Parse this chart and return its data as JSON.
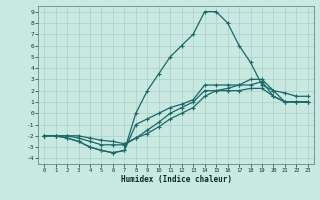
{
  "xlabel": "Humidex (Indice chaleur)",
  "bg_color": "#c8e8e0",
  "grid_color": "#a8d0cc",
  "line_color": "#1a6868",
  "xlim": [
    -0.5,
    23.5
  ],
  "ylim": [
    -4.5,
    9.5
  ],
  "xticks": [
    0,
    1,
    2,
    3,
    4,
    5,
    6,
    7,
    8,
    9,
    10,
    11,
    12,
    13,
    14,
    15,
    16,
    17,
    18,
    19,
    20,
    21,
    22,
    23
  ],
  "yticks": [
    -4,
    -3,
    -2,
    -1,
    0,
    1,
    2,
    3,
    4,
    5,
    6,
    7,
    8,
    9
  ],
  "curve_main_x": [
    0,
    1,
    2,
    3,
    4,
    5,
    6,
    7,
    8,
    9,
    10,
    11,
    12,
    13,
    14,
    15,
    16,
    17,
    18,
    19,
    20,
    21,
    22,
    23
  ],
  "curve_main_y": [
    -2,
    -2,
    -2.2,
    -2.5,
    -3,
    -3.3,
    -3.5,
    -3.3,
    0,
    2,
    3.5,
    5,
    6,
    7,
    9,
    9,
    8,
    6,
    4.5,
    2.5,
    2,
    1.8,
    1.5,
    1.5
  ],
  "curve2_x": [
    0,
    1,
    2,
    3,
    4,
    5,
    6,
    7,
    8,
    9,
    10,
    11,
    12,
    13,
    14,
    15,
    16,
    17,
    18,
    19,
    20,
    21,
    22,
    23
  ],
  "curve2_y": [
    -2,
    -2,
    -2.2,
    -2.5,
    -3,
    -3.3,
    -3.5,
    -3.3,
    -1,
    -0.5,
    0,
    0.5,
    0.8,
    1.2,
    2.5,
    2.5,
    2.5,
    2.5,
    3,
    3,
    2,
    1,
    1,
    1
  ],
  "curve3_x": [
    0,
    1,
    2,
    3,
    4,
    5,
    6,
    7,
    8,
    9,
    10,
    11,
    12,
    13,
    14,
    15,
    16,
    17,
    18,
    19,
    20,
    21,
    22,
    23
  ],
  "curve3_y": [
    -2,
    -2,
    -2,
    -2.2,
    -2.5,
    -2.8,
    -2.8,
    -2.8,
    -2.2,
    -1.5,
    -0.8,
    0,
    0.5,
    1,
    2,
    2,
    2.2,
    2.5,
    2.5,
    2.8,
    1.5,
    1,
    1,
    1
  ],
  "curve4_x": [
    0,
    1,
    2,
    3,
    4,
    5,
    6,
    7,
    8,
    9,
    10,
    11,
    12,
    13,
    14,
    15,
    16,
    17,
    18,
    19,
    20,
    21,
    22,
    23
  ],
  "curve4_y": [
    -2,
    -2,
    -2,
    -2,
    -2.2,
    -2.4,
    -2.5,
    -2.7,
    -2.2,
    -1.8,
    -1.2,
    -0.5,
    0,
    0.5,
    1.5,
    2,
    2,
    2,
    2.2,
    2.2,
    1.5,
    1,
    1,
    1
  ]
}
